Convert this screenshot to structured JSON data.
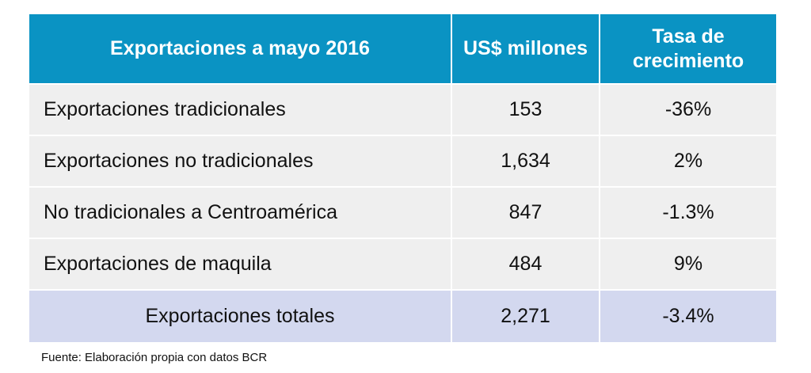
{
  "table": {
    "header": [
      "Exportaciones a mayo 2016",
      "US$ millones",
      "Tasa de crecimiento"
    ],
    "rows": [
      [
        "Exportaciones tradicionales",
        "153",
        "-36%"
      ],
      [
        "Exportaciones no tradicionales",
        "1,634",
        "2%"
      ],
      [
        "No tradicionales a Centroamérica",
        "847",
        "-1.3%"
      ],
      [
        "Exportaciones de maquila",
        "484",
        "9%"
      ]
    ],
    "total": [
      "Exportaciones totales",
      "2,271",
      "-3.4%"
    ]
  },
  "footer": "Fuente: Elaboración propia con datos BCR"
}
